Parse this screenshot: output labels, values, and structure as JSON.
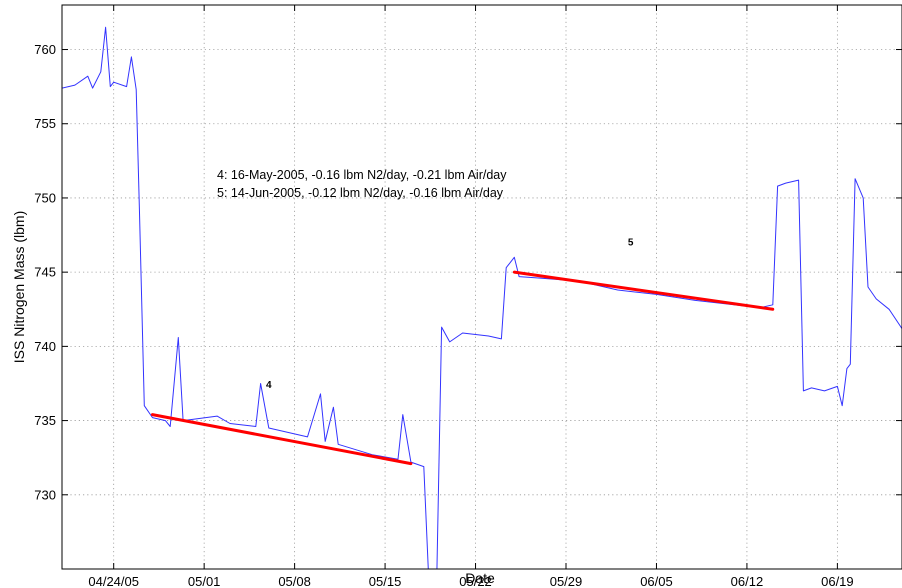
{
  "chart_data": {
    "type": "line",
    "title": "",
    "xlabel": "Date",
    "ylabel": "ISS Nitrogen Mass (lbm)",
    "year": 2005,
    "xlim": [
      "2005-04-20",
      "2005-06-24"
    ],
    "ylim": [
      725,
      763
    ],
    "grid": true,
    "x_ticks": [
      "2005-04-24",
      "2005-05-01",
      "2005-05-08",
      "2005-05-15",
      "2005-05-22",
      "2005-05-29",
      "2005-06-05",
      "2005-06-12",
      "2005-06-19"
    ],
    "x_tick_labels": [
      "04/24/05",
      "05/01",
      "05/08",
      "05/15",
      "05/22",
      "05/29",
      "06/05",
      "06/12",
      "06/19"
    ],
    "y_ticks": [
      730,
      735,
      740,
      745,
      750,
      755,
      760
    ],
    "y_tick_labels": [
      "730",
      "735",
      "740",
      "745",
      "750",
      "755",
      "760"
    ],
    "colors": {
      "series": "#3333ff",
      "fit": "#ff0000",
      "grid": "#9a9a9a",
      "axes": "#000000"
    },
    "series": [
      {
        "color": "#3333ff",
        "points": [
          [
            "2005-04-20",
            757.4
          ],
          [
            "2005-04-21",
            757.6
          ],
          [
            "2005-04-22",
            758.2
          ],
          [
            "2005-04-22",
            757.4
          ],
          [
            "2005-04-23",
            758.5
          ],
          [
            "2005-04-23",
            761.5
          ],
          [
            "2005-04-23",
            757.5
          ],
          [
            "2005-04-24",
            757.8
          ],
          [
            "2005-04-25",
            757.5
          ],
          [
            "2005-04-25",
            759.5
          ],
          [
            "2005-04-25",
            757.3
          ],
          [
            "2005-04-26",
            749.0
          ],
          [
            "2005-04-26",
            736.0
          ],
          [
            "2005-04-27",
            735.2
          ],
          [
            "2005-04-28",
            735.0
          ],
          [
            "2005-04-28",
            734.6
          ],
          [
            "2005-04-29",
            740.6
          ],
          [
            "2005-04-29",
            735.0
          ],
          [
            "2005-05-02",
            735.3
          ],
          [
            "2005-05-03",
            734.8
          ],
          [
            "2005-05-05",
            734.6
          ],
          [
            "2005-05-05",
            737.5
          ],
          [
            "2005-05-06",
            734.5
          ],
          [
            "2005-05-09",
            733.9
          ],
          [
            "2005-05-10",
            736.8
          ],
          [
            "2005-05-10",
            733.6
          ],
          [
            "2005-05-11",
            735.9
          ],
          [
            "2005-05-11",
            733.4
          ],
          [
            "2005-05-14",
            732.7
          ],
          [
            "2005-05-16",
            732.4
          ],
          [
            "2005-05-16",
            735.4
          ],
          [
            "2005-05-17",
            732.2
          ],
          [
            "2005-05-18",
            731.9
          ],
          [
            "2005-05-18",
            724.5
          ],
          [
            "2005-05-19",
            724.5
          ],
          [
            "2005-05-19",
            741.3
          ],
          [
            "2005-05-20",
            740.3
          ],
          [
            "2005-05-21",
            740.9
          ],
          [
            "2005-05-23",
            740.7
          ],
          [
            "2005-05-24",
            740.5
          ],
          [
            "2005-05-24",
            745.3
          ],
          [
            "2005-05-25",
            746.0
          ],
          [
            "2005-05-25",
            744.7
          ],
          [
            "2005-05-27",
            744.6
          ],
          [
            "2005-05-30",
            744.4
          ],
          [
            "2005-06-02",
            743.8
          ],
          [
            "2005-06-05",
            743.5
          ],
          [
            "2005-06-08",
            743.1
          ],
          [
            "2005-06-11",
            742.8
          ],
          [
            "2005-06-13",
            742.6
          ],
          [
            "2005-06-14",
            742.8
          ],
          [
            "2005-06-14",
            750.8
          ],
          [
            "2005-06-15",
            751.0
          ],
          [
            "2005-06-16",
            751.2
          ],
          [
            "2005-06-16",
            737.0
          ],
          [
            "2005-06-17",
            737.2
          ],
          [
            "2005-06-18",
            737.0
          ],
          [
            "2005-06-19",
            737.3
          ],
          [
            "2005-06-19",
            736.0
          ],
          [
            "2005-06-19",
            738.5
          ],
          [
            "2005-06-20",
            738.8
          ],
          [
            "2005-06-20",
            751.3
          ],
          [
            "2005-06-21",
            750.0
          ],
          [
            "2005-06-21",
            744.0
          ],
          [
            "2005-06-22",
            743.2
          ],
          [
            "2005-06-23",
            742.5
          ],
          [
            "2005-06-24",
            741.2
          ]
        ]
      }
    ],
    "fits": [
      {
        "label": "4",
        "color": "#ff0000",
        "start": [
          "2005-04-27",
          735.4
        ],
        "end": [
          "2005-05-17",
          732.1
        ],
        "label_at": [
          "2005-05-06",
          737.2
        ]
      },
      {
        "label": "5",
        "color": "#ff0000",
        "start": [
          "2005-05-25",
          745.0
        ],
        "end": [
          "2005-06-14",
          742.5
        ],
        "label_at": [
          "2005-06-03",
          746.8
        ]
      }
    ],
    "annotations": [
      "4: 16-May-2005, -0.16 lbm N2/day, -0.21 lbm Air/day",
      "5: 14-Jun-2005, -0.12 lbm N2/day, -0.16 lbm Air/day"
    ]
  }
}
